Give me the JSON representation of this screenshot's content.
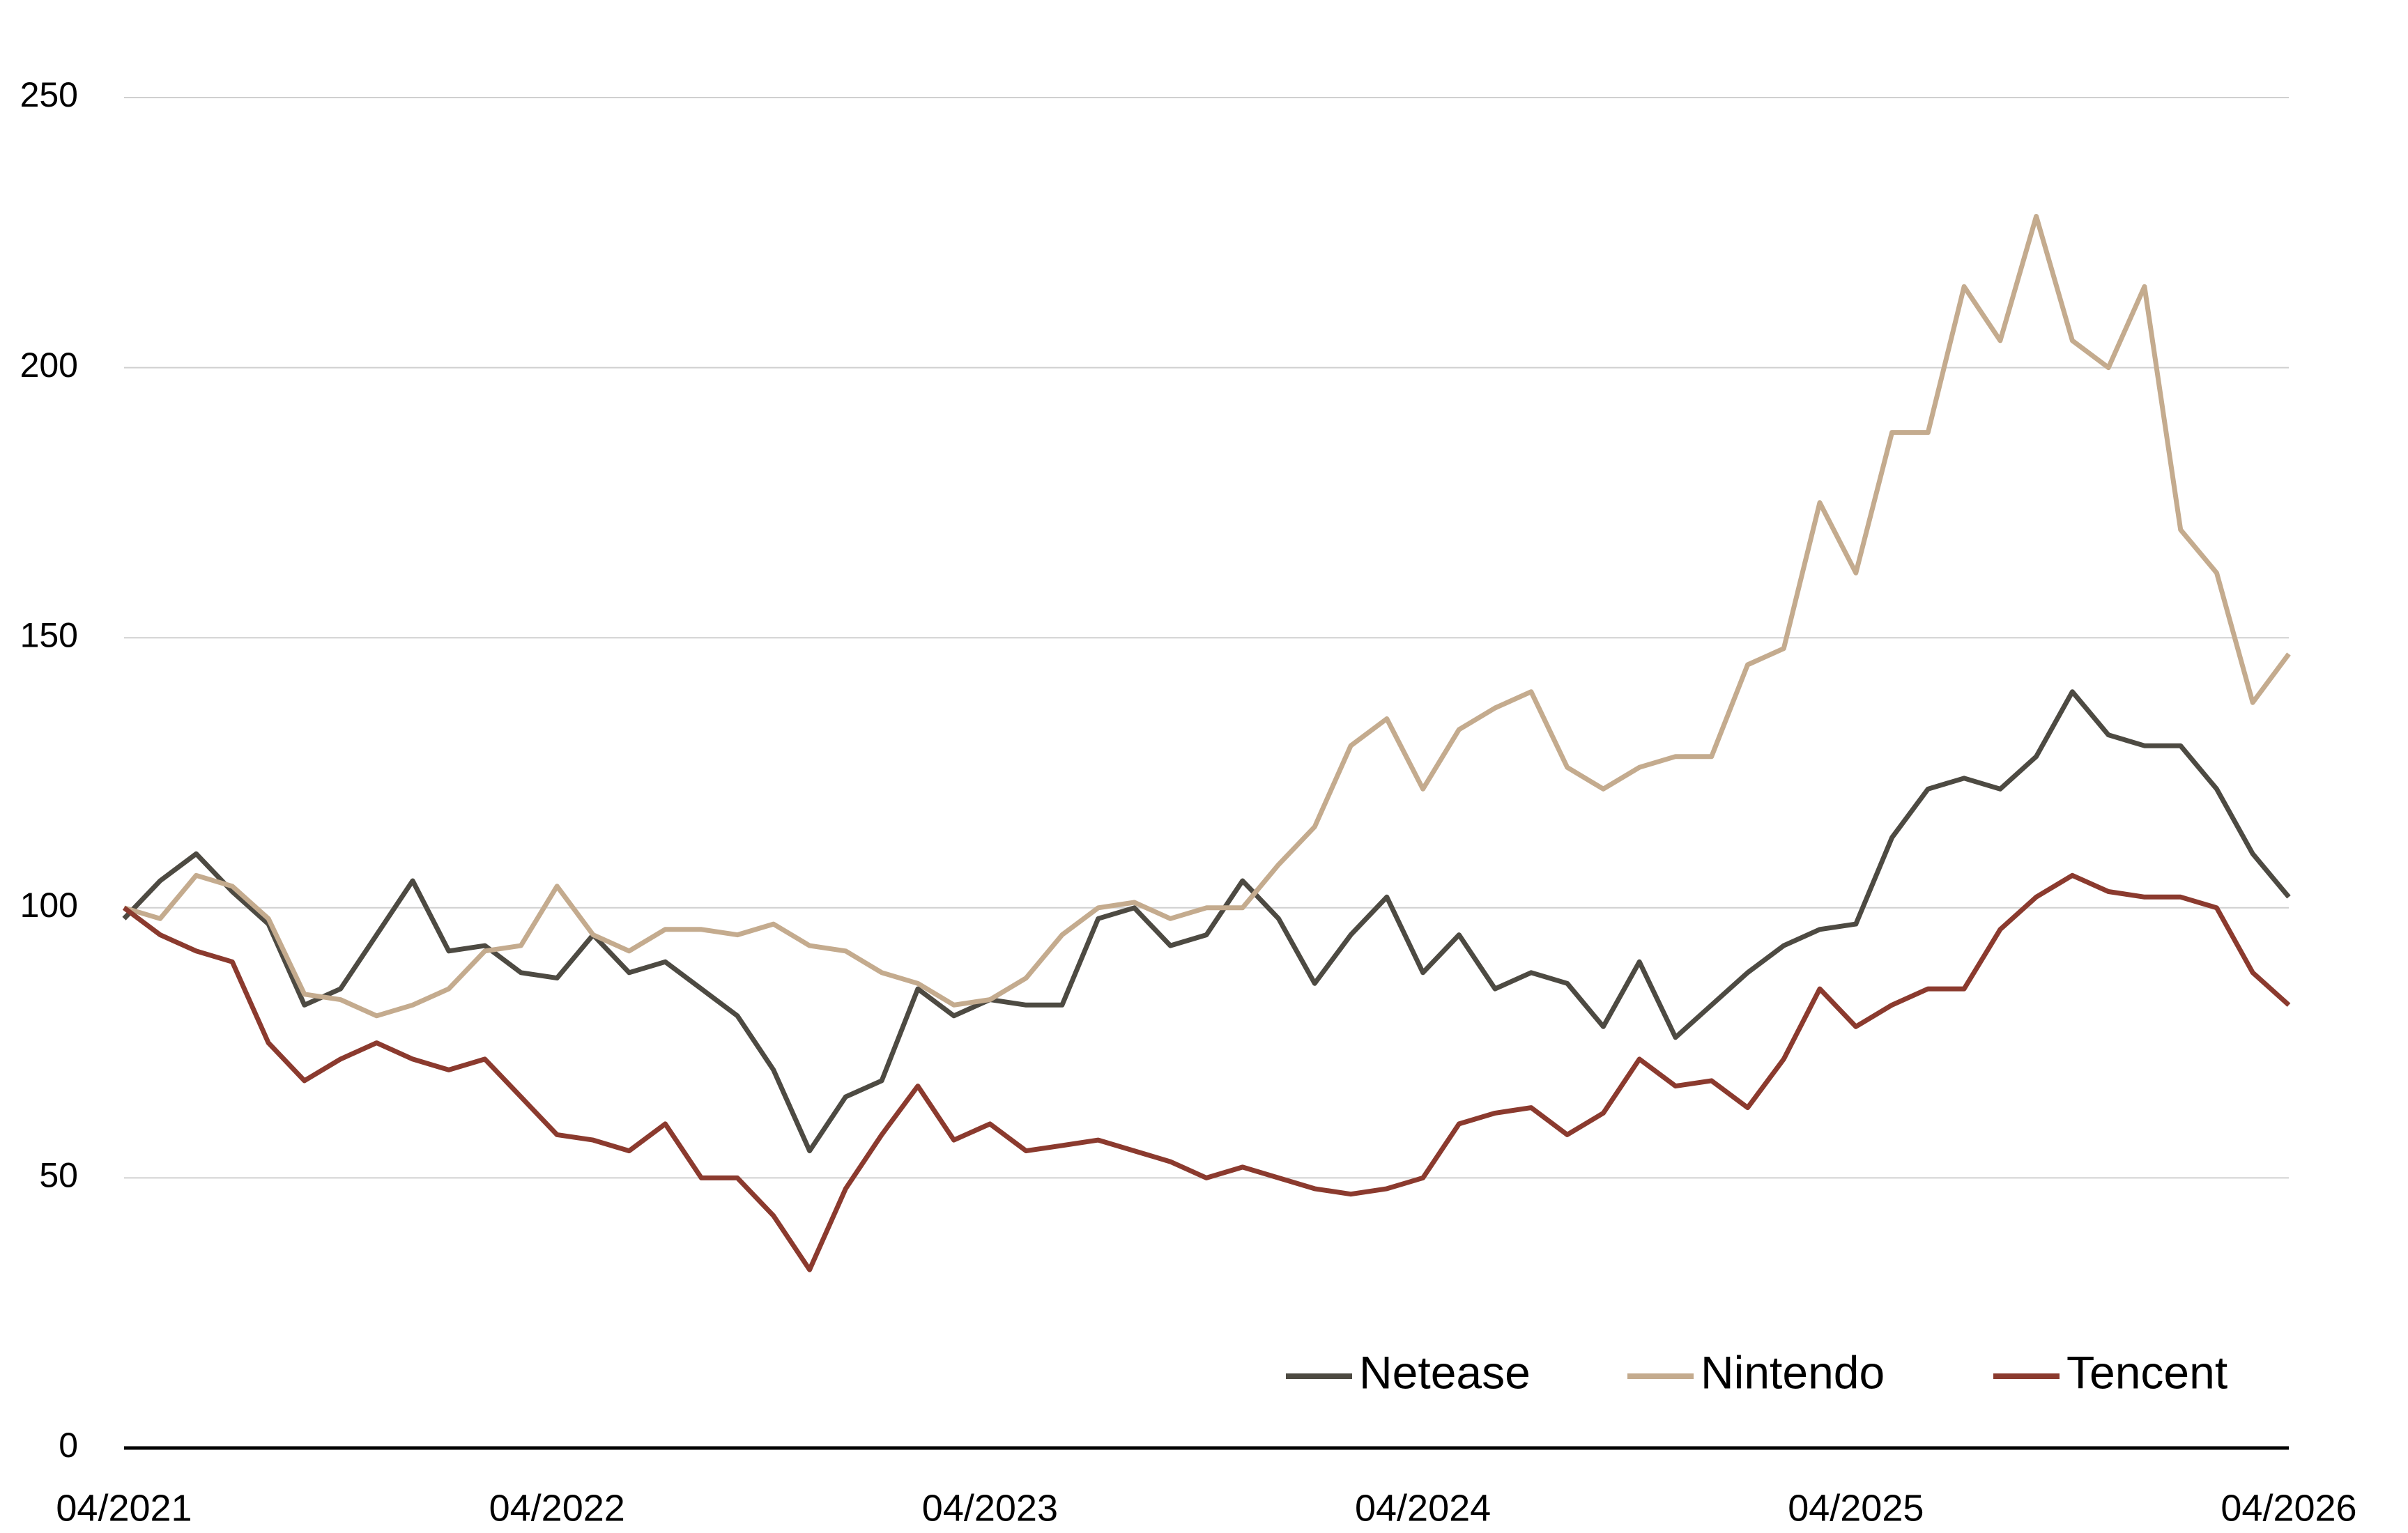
{
  "chart_data": {
    "type": "line",
    "categories": [
      "04/2021",
      null,
      null,
      null,
      null,
      null,
      null,
      null,
      null,
      null,
      null,
      null,
      "04/2022",
      null,
      null,
      null,
      null,
      null,
      null,
      null,
      null,
      null,
      null,
      null,
      "04/2023",
      null,
      null,
      null,
      null,
      null,
      null,
      null,
      null,
      null,
      null,
      null,
      "04/2024",
      null,
      null,
      null,
      null,
      null,
      null,
      null,
      null,
      null,
      null,
      null,
      "04/2025",
      null,
      null,
      null,
      null,
      null,
      null,
      null,
      null,
      null,
      null,
      null,
      "04/2026"
    ],
    "series": [
      {
        "name": "Netease",
        "color": "#4d4a42",
        "values": [
          98,
          105,
          110,
          103,
          97,
          82,
          85,
          95,
          105,
          92,
          93,
          88,
          87,
          95,
          88,
          90,
          85,
          80,
          70,
          55,
          65,
          68,
          85,
          80,
          83,
          82,
          82,
          98,
          100,
          93,
          95,
          105,
          98,
          86,
          95,
          102,
          88,
          95,
          85,
          88,
          86,
          78,
          90,
          76,
          82,
          88,
          93,
          96,
          97,
          113,
          122,
          124,
          122,
          128,
          140,
          132,
          130,
          130,
          122,
          110,
          102
        ]
      },
      {
        "name": "Nintendo",
        "color": "#c4ab8e",
        "values": [
          100,
          98,
          106,
          104,
          98,
          84,
          83,
          80,
          82,
          85,
          92,
          93,
          104,
          95,
          92,
          96,
          96,
          95,
          97,
          93,
          92,
          88,
          86,
          82,
          83,
          87,
          95,
          100,
          101,
          98,
          100,
          100,
          108,
          115,
          130,
          135,
          122,
          133,
          137,
          140,
          126,
          122,
          126,
          128,
          128,
          145,
          148,
          175,
          162,
          188,
          188,
          215,
          205,
          228,
          205,
          200,
          215,
          170,
          162,
          138,
          147
        ]
      },
      {
        "name": "Tencent",
        "color": "#8b3a2e",
        "values": [
          100,
          95,
          92,
          90,
          75,
          68,
          72,
          75,
          72,
          70,
          72,
          65,
          58,
          57,
          55,
          60,
          50,
          50,
          43,
          33,
          48,
          58,
          67,
          57,
          60,
          55,
          56,
          57,
          55,
          53,
          50,
          52,
          50,
          48,
          47,
          48,
          50,
          60,
          62,
          63,
          58,
          62,
          72,
          67,
          68,
          63,
          72,
          85,
          78,
          82,
          85,
          85,
          96,
          102,
          106,
          103,
          102,
          102,
          100,
          88,
          82
        ]
      }
    ],
    "ylim": [
      0,
      250
    ],
    "yticks": [
      0,
      50,
      100,
      150,
      200,
      250
    ],
    "grid": true,
    "legend": "bottom-right"
  }
}
